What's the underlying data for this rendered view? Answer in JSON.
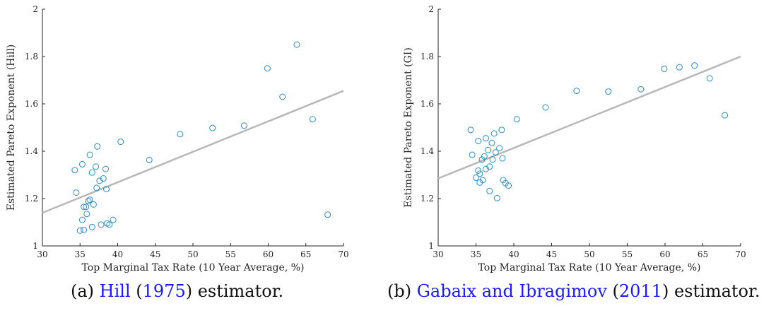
{
  "chart_data": [
    {
      "type": "scatter",
      "panel": "a",
      "xlabel": "Top Marginal Tax Rate (10 Year Average, %)",
      "ylabel": "Estimated Pareto Exponent (Hill)",
      "xlim": [
        30,
        70
      ],
      "ylim": [
        1,
        2
      ],
      "xticks": [
        "30",
        "35",
        "40",
        "45",
        "50",
        "55",
        "60",
        "65",
        "70"
      ],
      "yticks": [
        "1",
        "1.2",
        "1.4",
        "1.6",
        "1.8",
        "2"
      ],
      "grid": false,
      "points": [
        [
          34.3,
          1.32
        ],
        [
          34.5,
          1.225
        ],
        [
          35.0,
          1.065
        ],
        [
          35.3,
          1.345
        ],
        [
          35.3,
          1.11
        ],
        [
          35.5,
          1.068
        ],
        [
          35.5,
          1.165
        ],
        [
          35.8,
          1.165
        ],
        [
          35.9,
          1.135
        ],
        [
          36.1,
          1.19
        ],
        [
          36.3,
          1.385
        ],
        [
          36.3,
          1.195
        ],
        [
          36.6,
          1.31
        ],
        [
          36.6,
          1.08
        ],
        [
          36.8,
          1.175
        ],
        [
          37.1,
          1.335
        ],
        [
          37.2,
          1.245
        ],
        [
          37.3,
          1.42
        ],
        [
          37.6,
          1.275
        ],
        [
          37.8,
          1.09
        ],
        [
          38.1,
          1.285
        ],
        [
          38.4,
          1.325
        ],
        [
          38.5,
          1.24
        ],
        [
          38.6,
          1.095
        ],
        [
          38.9,
          1.09
        ],
        [
          39.4,
          1.11
        ],
        [
          40.4,
          1.44
        ],
        [
          44.2,
          1.363
        ],
        [
          48.3,
          1.472
        ],
        [
          52.6,
          1.498
        ],
        [
          56.8,
          1.508
        ],
        [
          59.9,
          1.75
        ],
        [
          61.9,
          1.63
        ],
        [
          63.8,
          1.85
        ],
        [
          65.9,
          1.535
        ],
        [
          67.9,
          1.132
        ]
      ],
      "fit_line": {
        "x": [
          30,
          70
        ],
        "y": [
          1.14,
          1.655
        ]
      },
      "marker_color": "#2a8dc5",
      "line_color": "#b8b8b8"
    },
    {
      "type": "scatter",
      "panel": "b",
      "xlabel": "Top Marginal Tax Rate (10 Year Average, %)",
      "ylabel": "Estimated Pareto Exponent (GI)",
      "xlim": [
        30,
        70
      ],
      "ylim": [
        1,
        2
      ],
      "xticks": [
        "30",
        "35",
        "40",
        "45",
        "50",
        "55",
        "60",
        "65",
        "70"
      ],
      "yticks": [
        "1",
        "1.2",
        "1.4",
        "1.6",
        "1.8",
        "2"
      ],
      "grid": false,
      "points": [
        [
          34.3,
          1.49
        ],
        [
          34.5,
          1.385
        ],
        [
          35.0,
          1.288
        ],
        [
          35.3,
          1.318
        ],
        [
          35.3,
          1.443
        ],
        [
          35.5,
          1.305
        ],
        [
          35.5,
          1.268
        ],
        [
          35.8,
          1.365
        ],
        [
          35.9,
          1.278
        ],
        [
          36.1,
          1.378
        ],
        [
          36.3,
          1.325
        ],
        [
          36.3,
          1.455
        ],
        [
          36.6,
          1.405
        ],
        [
          36.8,
          1.335
        ],
        [
          36.8,
          1.232
        ],
        [
          37.1,
          1.435
        ],
        [
          37.2,
          1.365
        ],
        [
          37.4,
          1.475
        ],
        [
          37.6,
          1.395
        ],
        [
          37.8,
          1.202
        ],
        [
          38.1,
          1.413
        ],
        [
          38.4,
          1.49
        ],
        [
          38.5,
          1.37
        ],
        [
          38.6,
          1.278
        ],
        [
          38.9,
          1.265
        ],
        [
          39.3,
          1.255
        ],
        [
          40.4,
          1.535
        ],
        [
          44.2,
          1.585
        ],
        [
          48.3,
          1.655
        ],
        [
          52.5,
          1.652
        ],
        [
          56.8,
          1.662
        ],
        [
          59.9,
          1.748
        ],
        [
          61.9,
          1.755
        ],
        [
          63.9,
          1.762
        ],
        [
          65.9,
          1.708
        ],
        [
          67.9,
          1.552
        ]
      ],
      "fit_line": {
        "x": [
          30,
          70
        ],
        "y": [
          1.285,
          1.8
        ]
      },
      "marker_color": "#2a8dc5",
      "line_color": "#b8b8b8"
    }
  ],
  "captions": [
    {
      "prefix": "(a) ",
      "link1": "Hill",
      "mid1": " (",
      "link2": "1975",
      "mid2": ") estimator."
    },
    {
      "prefix": "(b) ",
      "link1": "Gabaix and Ibragimov",
      "mid1": " (",
      "link2": "2011",
      "mid2": ") estimator."
    }
  ]
}
